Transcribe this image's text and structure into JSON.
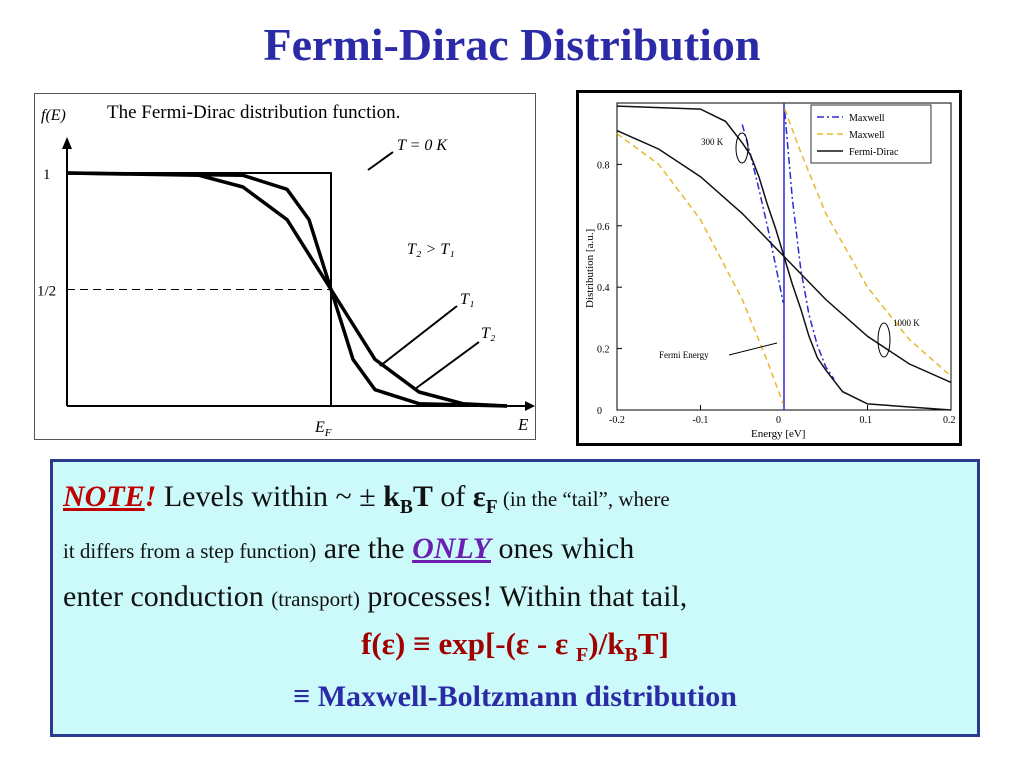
{
  "slide": {
    "title": "Fermi-Dirac Distribution"
  },
  "chart_data": [
    {
      "type": "line",
      "title": "The Fermi-Dirac distribution function.",
      "ylabel": "f(E)",
      "xlabel": "E",
      "ytick_labels": [
        "1",
        "1/2"
      ],
      "xtick_labels": [
        "E_F"
      ],
      "annotations": [
        "T = 0 K",
        "T₂ > T₁",
        "T₁",
        "T₂"
      ],
      "series": [
        {
          "name": "T = 0 K",
          "x": [
            0.0,
            0.6,
            0.6,
            1.0
          ],
          "values": [
            1.0,
            1.0,
            0.0,
            0.0
          ]
        },
        {
          "name": "T₁",
          "x": [
            0.0,
            0.4,
            0.5,
            0.55,
            0.6,
            0.65,
            0.7,
            0.8,
            1.0
          ],
          "values": [
            1.0,
            0.99,
            0.93,
            0.8,
            0.5,
            0.2,
            0.07,
            0.01,
            0.0
          ]
        },
        {
          "name": "T₂",
          "x": [
            0.0,
            0.3,
            0.4,
            0.5,
            0.6,
            0.7,
            0.8,
            0.9,
            1.0
          ],
          "values": [
            1.0,
            0.99,
            0.94,
            0.8,
            0.5,
            0.2,
            0.06,
            0.01,
            0.0
          ]
        }
      ]
    },
    {
      "type": "line",
      "xlabel": "Energy [eV]",
      "ylabel": "Distribution [a.u.]",
      "xlim": [
        -0.2,
        0.2
      ],
      "ylim": [
        0,
        1.0
      ],
      "xticks": [
        -0.2,
        -0.1,
        0,
        0.1,
        0.2
      ],
      "yticks": [
        0,
        0.2,
        0.4,
        0.6,
        0.8
      ],
      "xtick_labels": [
        "-0.2",
        "-0.1",
        "0",
        "0.1",
        "0.2"
      ],
      "ytick_labels": [
        "0",
        "0.2",
        "0.4",
        "0.6",
        "0.8"
      ],
      "legend_position": "top-right",
      "annotations": [
        "300 K",
        "1000 K",
        "Fermi Energy"
      ],
      "series": [
        {
          "name": "Maxwell",
          "style": "dashdot",
          "color": "#2a2ad0",
          "x": [
            -0.05,
            -0.04,
            -0.03,
            -0.02,
            -0.01,
            -0.001,
            0.001,
            0.01,
            0.02,
            0.03,
            0.04,
            0.05,
            0.06
          ],
          "values": [
            0.93,
            0.83,
            0.72,
            0.6,
            0.47,
            0.35,
            0.97,
            0.69,
            0.46,
            0.31,
            0.21,
            0.14,
            0.1
          ]
        },
        {
          "name": "Maxwell",
          "style": "dashed",
          "color": "#e8b830",
          "x": [
            -0.2,
            -0.15,
            -0.1,
            -0.05,
            -0.02,
            -0.001,
            0.001,
            0.02,
            0.05,
            0.1,
            0.15,
            0.2
          ],
          "values": [
            0.9,
            0.8,
            0.62,
            0.36,
            0.16,
            0.02,
            0.98,
            0.84,
            0.64,
            0.4,
            0.23,
            0.11
          ]
        },
        {
          "name": "Fermi-Dirac",
          "style": "solid",
          "color": "#111111",
          "x": [
            -0.2,
            -0.1,
            -0.07,
            -0.05,
            -0.04,
            -0.03,
            -0.02,
            -0.01,
            0,
            0.01,
            0.02,
            0.03,
            0.04,
            0.05,
            0.07,
            0.1,
            0.2
          ],
          "values": [
            0.99,
            0.98,
            0.94,
            0.87,
            0.83,
            0.76,
            0.67,
            0.59,
            0.5,
            0.41,
            0.33,
            0.24,
            0.17,
            0.13,
            0.06,
            0.02,
            0.0
          ]
        },
        {
          "name": "Fermi-Dirac (1000 K)",
          "style": "solid",
          "color": "#111111",
          "x": [
            -0.2,
            -0.15,
            -0.1,
            -0.05,
            0,
            0.05,
            0.1,
            0.15,
            0.2
          ],
          "values": [
            0.91,
            0.85,
            0.76,
            0.64,
            0.5,
            0.36,
            0.24,
            0.15,
            0.09
          ]
        }
      ]
    }
  ],
  "note": {
    "note_word": "NOTE",
    "bang": "!",
    "t1": "Levels within ~ ± ",
    "kb": "k",
    "kb_sub": "B",
    "T": "T",
    "t2": " of ",
    "eps": "ε",
    "eps_sub": "F",
    "t3": " (in the “tail”",
    "t3b": ", where",
    "l2a": "it differs from a step function)",
    "l2b": " are the ",
    "only": "ONLY",
    "l2c": " ones which",
    "l3a": "enter conduction ",
    "l3b": "(transport)",
    "l3c": " processes! Within that tail,",
    "eq_a": "f(ε) ≡ exp[-(ε - ε ",
    "eq_sub_f": "F",
    "eq_b": ")/k",
    "eq_sub_b": "B",
    "eq_c": "T]",
    "mb": "≡ Maxwell-Boltzmann distribution"
  }
}
